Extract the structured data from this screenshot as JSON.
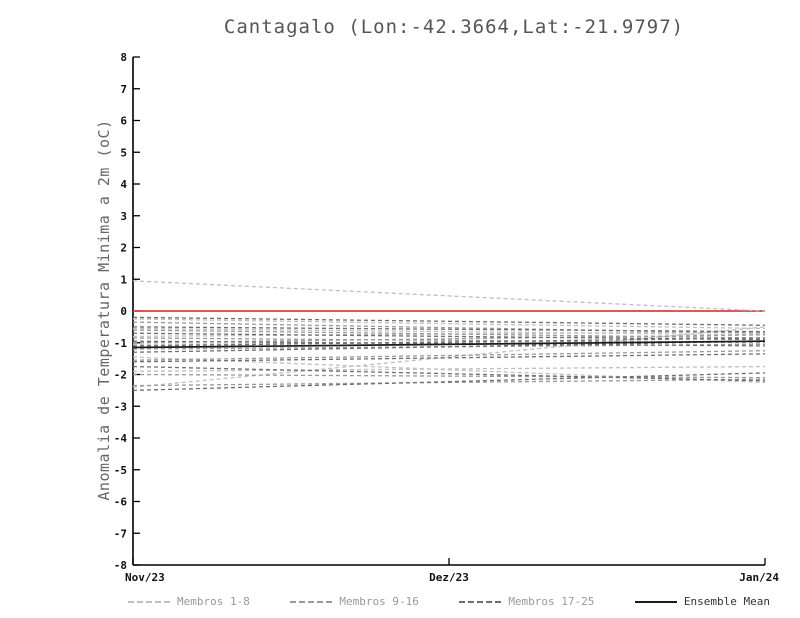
{
  "title": "Cantagalo (Lon:-42.3664,Lat:-21.9797)",
  "chart_data": {
    "type": "line",
    "title": "Cantagalo (Lon:-42.3664,Lat:-21.9797)",
    "ylabel": "Anomalia de Temperatura Minima a 2m (oC)",
    "xlabel": "",
    "ylim": [
      -8,
      8
    ],
    "ytick_interval": 1,
    "grid": false,
    "x_ticklabels": [
      "Nov/23",
      "Dez/23",
      "Jan/24"
    ],
    "zero_line_value": 0,
    "zero_line_color": "#e23b3b",
    "groups": [
      {
        "name": "Membros 1-8",
        "color": "#bfbfbf",
        "style": "dashed",
        "members": [
          [
            0.95,
            0.0
          ],
          [
            -0.25,
            -0.55
          ],
          [
            -0.55,
            -0.75
          ],
          [
            -0.8,
            -0.65
          ],
          [
            -1.05,
            -0.95
          ],
          [
            -1.45,
            -2.25
          ],
          [
            -1.9,
            -1.75
          ],
          [
            -2.4,
            -0.5
          ]
        ]
      },
      {
        "name": "Membros 9-16",
        "color": "#999999",
        "style": "dashed",
        "members": [
          [
            -0.35,
            -0.7
          ],
          [
            -0.6,
            -0.85
          ],
          [
            -0.85,
            -1.0
          ],
          [
            -1.0,
            -0.75
          ],
          [
            -1.2,
            -1.05
          ],
          [
            -1.55,
            -1.25
          ],
          [
            -2.0,
            -2.1
          ],
          [
            -2.35,
            -2.15
          ]
        ]
      },
      {
        "name": "Membros 17-25",
        "color": "#6e6e6e",
        "style": "dashed",
        "members": [
          [
            -0.2,
            -0.45
          ],
          [
            -0.5,
            -0.65
          ],
          [
            -0.7,
            -0.9
          ],
          [
            -0.95,
            -1.1
          ],
          [
            -1.1,
            -0.85
          ],
          [
            -1.3,
            -0.95
          ],
          [
            -1.6,
            -1.35
          ],
          [
            -1.75,
            -2.2
          ],
          [
            -2.5,
            -1.95
          ]
        ]
      }
    ],
    "ensemble_mean": {
      "name": "Ensemble Mean",
      "color": "#1a1a1a",
      "style": "solid",
      "values": [
        -1.15,
        -0.95
      ]
    },
    "legend_position": "bottom",
    "legend": [
      {
        "label": "Membros 1-8",
        "color": "#bfbfbf",
        "dash": true
      },
      {
        "label": "Membros 9-16",
        "color": "#999999",
        "dash": true
      },
      {
        "label": "Membros 17-25",
        "color": "#6e6e6e",
        "dash": true
      },
      {
        "label": "Ensemble Mean",
        "color": "#1a1a1a",
        "dash": false
      }
    ]
  }
}
